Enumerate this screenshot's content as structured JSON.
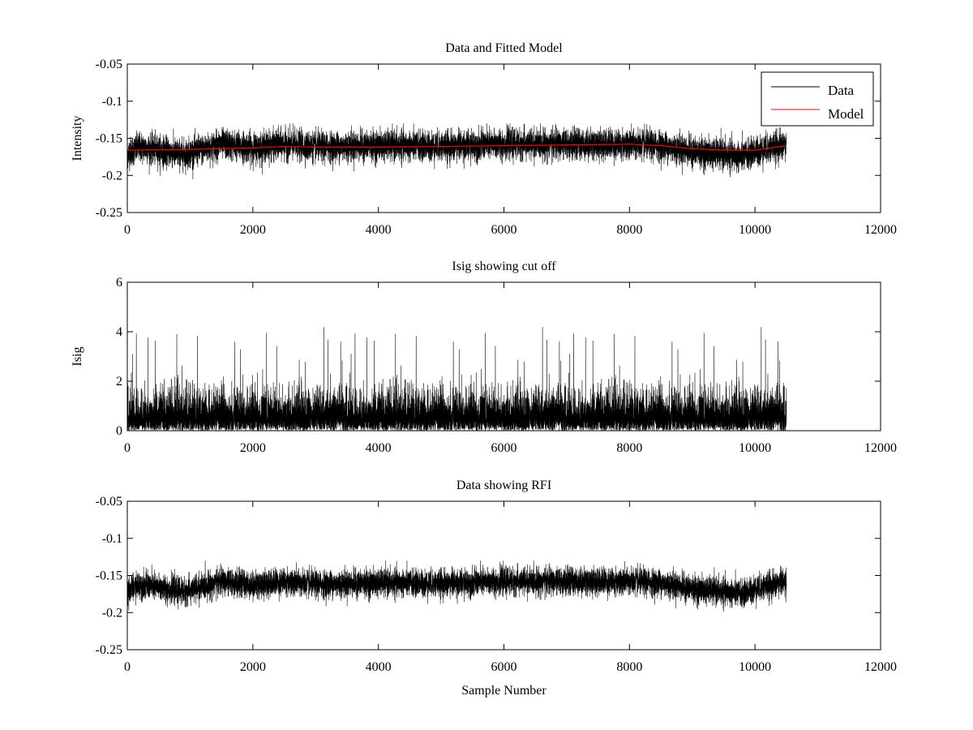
{
  "figure_background": "#ffffff",
  "chart_data": [
    {
      "type": "line",
      "title": "Data and Fitted Model",
      "xlabel": "",
      "ylabel": "Intensity",
      "xlim": [
        0,
        12000
      ],
      "ylim": [
        -0.25,
        -0.05
      ],
      "y_direction": "reversed",
      "xticks": [
        0,
        2000,
        4000,
        6000,
        8000,
        10000,
        12000
      ],
      "xtick_labels": [
        "0",
        "2000",
        "4000",
        "6000",
        "8000",
        "10000",
        "12000"
      ],
      "yticks": [
        -0.05,
        -0.1,
        -0.15,
        -0.2,
        -0.25
      ],
      "ytick_labels": [
        "-0.05",
        "-0.1",
        "-0.15",
        "-0.2",
        "-0.25"
      ],
      "grid": false,
      "legend": {
        "position": "top-right",
        "entries": [
          "Data",
          "Model"
        ]
      },
      "series": [
        {
          "name": "Data",
          "color": "#000000",
          "kind": "noisy",
          "n_points": 10500,
          "x_range": [
            0,
            10500
          ],
          "noise": 0.01,
          "envelope": [
            [
              0,
              -0.17
            ],
            [
              200,
              -0.162
            ],
            [
              900,
              -0.172
            ],
            [
              1500,
              -0.158
            ],
            [
              2000,
              -0.163
            ],
            [
              2500,
              -0.158
            ],
            [
              3000,
              -0.162
            ],
            [
              4000,
              -0.16
            ],
            [
              5000,
              -0.161
            ],
            [
              6000,
              -0.158
            ],
            [
              7000,
              -0.158
            ],
            [
              8000,
              -0.158
            ],
            [
              8500,
              -0.16
            ],
            [
              9000,
              -0.168
            ],
            [
              9500,
              -0.172
            ],
            [
              9800,
              -0.175
            ],
            [
              10000,
              -0.168
            ],
            [
              10500,
              -0.158
            ]
          ]
        },
        {
          "name": "Model",
          "color": "#ff0000",
          "kind": "line",
          "x": [
            0,
            1000,
            2000,
            2500,
            3000,
            4000,
            5000,
            6000,
            7000,
            8000,
            8500,
            9000,
            9500,
            10000,
            10500
          ],
          "y": [
            -0.166,
            -0.165,
            -0.163,
            -0.161,
            -0.162,
            -0.162,
            -0.161,
            -0.16,
            -0.159,
            -0.158,
            -0.16,
            -0.164,
            -0.166,
            -0.166,
            -0.16
          ]
        }
      ]
    },
    {
      "type": "line",
      "title": "Isig showing cut off",
      "xlabel": "",
      "ylabel": "Isig",
      "xlim": [
        0,
        12000
      ],
      "ylim": [
        0,
        6
      ],
      "y_direction": "normal",
      "xticks": [
        0,
        2000,
        4000,
        6000,
        8000,
        10000,
        12000
      ],
      "xtick_labels": [
        "0",
        "2000",
        "4000",
        "6000",
        "8000",
        "10000",
        "12000"
      ],
      "yticks": [
        0,
        2,
        4,
        6
      ],
      "ytick_labels": [
        "0",
        "2",
        "4",
        "6"
      ],
      "grid": false,
      "series": [
        {
          "color": "#000000",
          "kind": "abs-noise",
          "n_points": 10500,
          "x_range": [
            0,
            10500
          ],
          "typical_peak": 2.2,
          "max_value": 4.25
        }
      ]
    },
    {
      "type": "line",
      "title": "Data showing RFI",
      "xlabel": "Sample Number",
      "ylabel": "",
      "xlim": [
        0,
        12000
      ],
      "ylim": [
        -0.25,
        -0.05
      ],
      "y_direction": "reversed",
      "xticks": [
        0,
        2000,
        4000,
        6000,
        8000,
        10000,
        12000
      ],
      "xtick_labels": [
        "0",
        "2000",
        "4000",
        "6000",
        "8000",
        "10000",
        "12000"
      ],
      "yticks": [
        -0.05,
        -0.1,
        -0.15,
        -0.2,
        -0.25
      ],
      "ytick_labels": [
        "-0.05",
        "-0.1",
        "-0.15",
        "-0.2",
        "-0.25"
      ],
      "grid": false,
      "series": [
        {
          "color": "#000000",
          "kind": "noisy",
          "n_points": 10500,
          "x_range": [
            0,
            10500
          ],
          "noise": 0.009,
          "envelope": [
            [
              0,
              -0.17
            ],
            [
              200,
              -0.162
            ],
            [
              900,
              -0.172
            ],
            [
              1500,
              -0.158
            ],
            [
              2000,
              -0.163
            ],
            [
              2500,
              -0.158
            ],
            [
              3000,
              -0.162
            ],
            [
              4000,
              -0.16
            ],
            [
              5000,
              -0.161
            ],
            [
              6000,
              -0.158
            ],
            [
              7000,
              -0.158
            ],
            [
              8000,
              -0.158
            ],
            [
              8500,
              -0.16
            ],
            [
              9000,
              -0.168
            ],
            [
              9500,
              -0.172
            ],
            [
              9800,
              -0.175
            ],
            [
              10000,
              -0.168
            ],
            [
              10500,
              -0.158
            ]
          ]
        }
      ]
    }
  ]
}
